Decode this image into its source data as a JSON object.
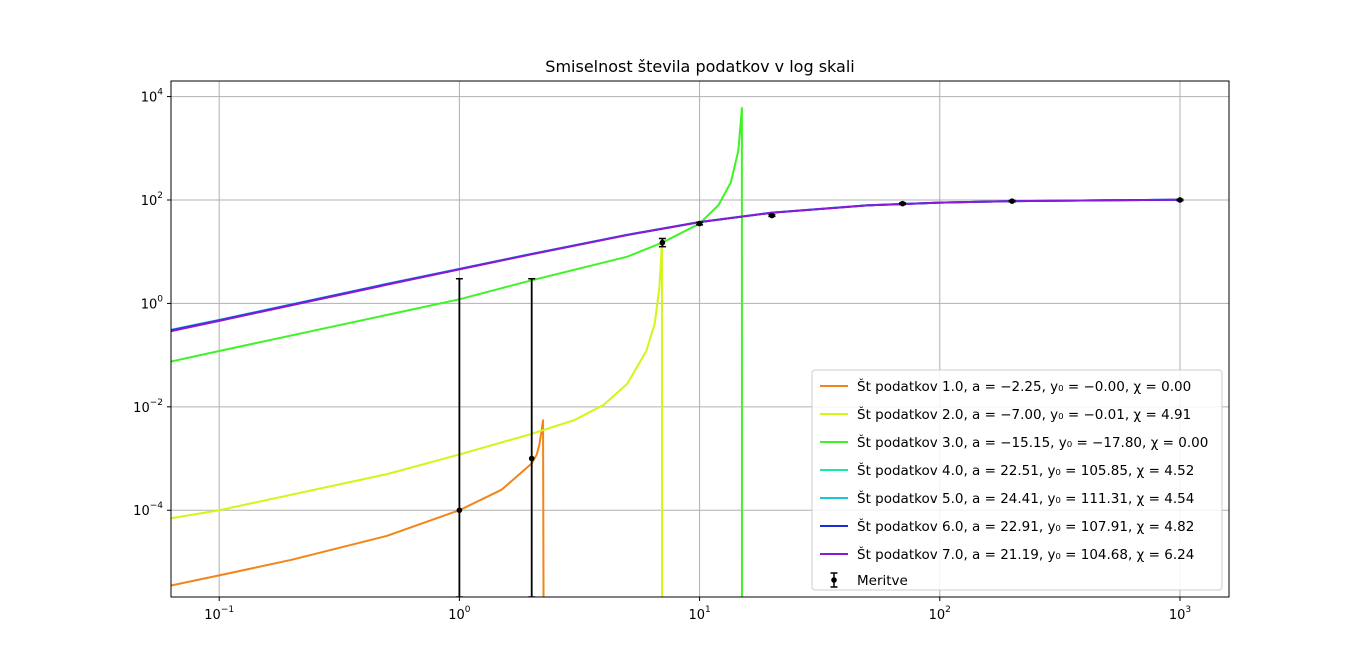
{
  "chart_data": {
    "type": "line",
    "title": "Smiselnost števila podatkov v log skali",
    "xlabel": "",
    "ylabel": "",
    "xscale": "log",
    "yscale": "log",
    "xlim": [
      0.063,
      1600
    ],
    "ylim": [
      2.1e-06,
      20000
    ],
    "grid": true,
    "legend_position": "lower-right",
    "x_ticks": [
      {
        "base": "10",
        "exp": "−1"
      },
      {
        "base": "10",
        "exp": "0"
      },
      {
        "base": "10",
        "exp": "1"
      },
      {
        "base": "10",
        "exp": "2"
      },
      {
        "base": "10",
        "exp": "3"
      }
    ],
    "y_ticks": [
      {
        "base": "10",
        "exp": "−4"
      },
      {
        "base": "10",
        "exp": "−2"
      },
      {
        "base": "10",
        "exp": "0"
      },
      {
        "base": "10",
        "exp": "2"
      },
      {
        "base": "10",
        "exp": "4"
      }
    ],
    "series": [
      {
        "name": "Št podatkov 1.0, a = −2.25, y₀ = −0.00, χ = 0.00",
        "color": "#f28518",
        "x": [
          0.063,
          0.1,
          0.2,
          0.5,
          1,
          1.5,
          2,
          2.1,
          2.15,
          2.2,
          2.23,
          2.24,
          2.25
        ],
        "y": [
          3.5e-06,
          5.5e-06,
          1.1e-05,
          3.2e-05,
          0.0001,
          0.00025,
          0.0008,
          0.0012,
          0.0018,
          0.0035,
          0.0055,
          2.1e-06,
          2.1e-06
        ]
      },
      {
        "name": "Št podatkov 2.0, a = −7.00, y₀ = −0.01, χ = 4.91",
        "color": "#d5f417",
        "x": [
          0.063,
          0.1,
          0.5,
          1,
          2,
          3,
          4,
          5,
          6,
          6.5,
          6.8,
          6.9,
          6.95,
          6.97,
          6.98
        ],
        "y": [
          7e-05,
          0.0001,
          0.0005,
          0.0012,
          0.003,
          0.0055,
          0.011,
          0.028,
          0.12,
          0.4,
          2,
          6,
          12,
          14,
          2.1e-06
        ]
      },
      {
        "name": "Št podatkov 3.0, a = −15.15, y₀ = −17.80, χ = 0.00",
        "color": "#3ef426",
        "x": [
          0.063,
          0.1,
          0.5,
          1,
          2,
          5,
          7,
          10,
          12,
          13.5,
          14.5,
          14.9,
          15,
          15.01
        ],
        "y": [
          0.075,
          0.12,
          0.6,
          1.2,
          2.8,
          8,
          15,
          35,
          80,
          220,
          900,
          4000,
          6000,
          2.1e-06
        ]
      },
      {
        "name": "Št podatkov 4.0, a = 22.51, y₀ = 105.85, χ = 4.52",
        "color": "#1ee8a0",
        "x": [
          0.063,
          0.1,
          0.5,
          1,
          2,
          5,
          10,
          20,
          50,
          100,
          200,
          500,
          1000
        ],
        "y": [
          0.3,
          0.47,
          2.35,
          4.6,
          9.1,
          21.3,
          37.5,
          57,
          79,
          89,
          95,
          99,
          101
        ]
      },
      {
        "name": "Št podatkov 5.0, a = 24.41, y₀ = 111.31, χ = 4.54",
        "color": "#1ec4d8",
        "x": [
          0.063,
          0.1,
          0.5,
          1,
          2,
          5,
          10,
          20,
          50,
          100,
          200,
          500,
          1000
        ],
        "y": [
          0.31,
          0.48,
          2.4,
          4.65,
          9.1,
          21.3,
          37.6,
          57,
          79,
          89,
          95,
          99,
          101
        ]
      },
      {
        "name": "Št podatkov 6.0, a = 22.91, y₀ = 107.91, χ = 4.82",
        "color": "#1a2fd6",
        "x": [
          0.063,
          0.1,
          0.5,
          1,
          2,
          5,
          10,
          20,
          50,
          100,
          200,
          500,
          1000
        ],
        "y": [
          0.3,
          0.47,
          2.35,
          4.6,
          9.0,
          21.1,
          37.3,
          56.8,
          78.8,
          89,
          95,
          99,
          101
        ]
      },
      {
        "name": "Št podatkov 7.0, a = 21.19, y₀ = 104.68, χ = 6.24",
        "color": "#8a19d8",
        "x": [
          0.063,
          0.1,
          0.5,
          1,
          2,
          5,
          10,
          20,
          50,
          100,
          200,
          500,
          1000
        ],
        "y": [
          0.29,
          0.46,
          2.3,
          4.55,
          8.9,
          21.0,
          37.2,
          56.6,
          78.6,
          88.8,
          95,
          99,
          101
        ]
      }
    ],
    "measurements": {
      "name": "Meritve",
      "color": "#000000",
      "points": [
        {
          "x": 1,
          "y": 0.0001,
          "err_low": 2.1e-06,
          "err_high": 3
        },
        {
          "x": 2,
          "y": 0.001,
          "err_low": 2.1e-06,
          "err_high": 3
        },
        {
          "x": 7,
          "y": 15,
          "err_low": 12.5,
          "err_high": 18
        },
        {
          "x": 10,
          "y": 35,
          "err_low": 33,
          "err_high": 37
        },
        {
          "x": 20,
          "y": 50,
          "err_low": 48,
          "err_high": 52
        },
        {
          "x": 70,
          "y": 85,
          "err_low": 82,
          "err_high": 88
        },
        {
          "x": 200,
          "y": 95,
          "err_low": 92,
          "err_high": 98
        },
        {
          "x": 1000,
          "y": 100,
          "err_low": 97,
          "err_high": 103
        }
      ]
    }
  }
}
